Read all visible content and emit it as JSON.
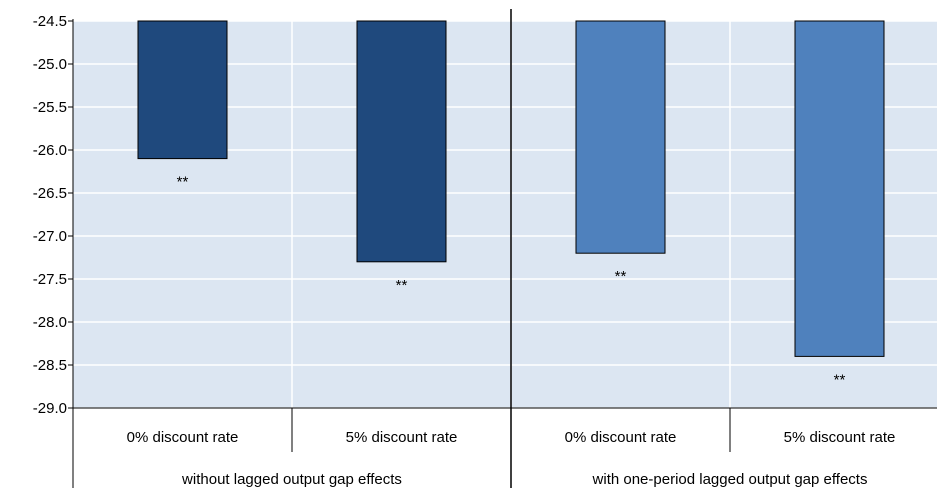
{
  "chart_data": {
    "type": "bar",
    "title": "",
    "xlabel": "",
    "ylabel": "",
    "ylim": [
      -29.0,
      -24.5
    ],
    "y_ticks": [
      "-24.5",
      "-25.0",
      "-25.5",
      "-26.0",
      "-26.5",
      "-27.0",
      "-27.5",
      "-28.0",
      "-28.5",
      "-29.0"
    ],
    "grid": true,
    "categories": [
      "0% discount rate",
      "5% discount rate",
      "0% discount rate",
      "5% discount rate"
    ],
    "groups": [
      {
        "label": "without lagged output gap effects",
        "span": [
          0,
          1
        ]
      },
      {
        "label": "with one-period lagged output gap effects",
        "span": [
          2,
          3
        ]
      }
    ],
    "values": [
      -26.1,
      -27.3,
      -27.2,
      -28.4
    ],
    "bar_colors": [
      "#1F497D",
      "#1F497D",
      "#4F81BD",
      "#4F81BD"
    ],
    "annotations": [
      "**",
      "**",
      "**",
      "**"
    ],
    "plot_background": "#DCE6F2",
    "grid_color": "#FFFFFF"
  }
}
